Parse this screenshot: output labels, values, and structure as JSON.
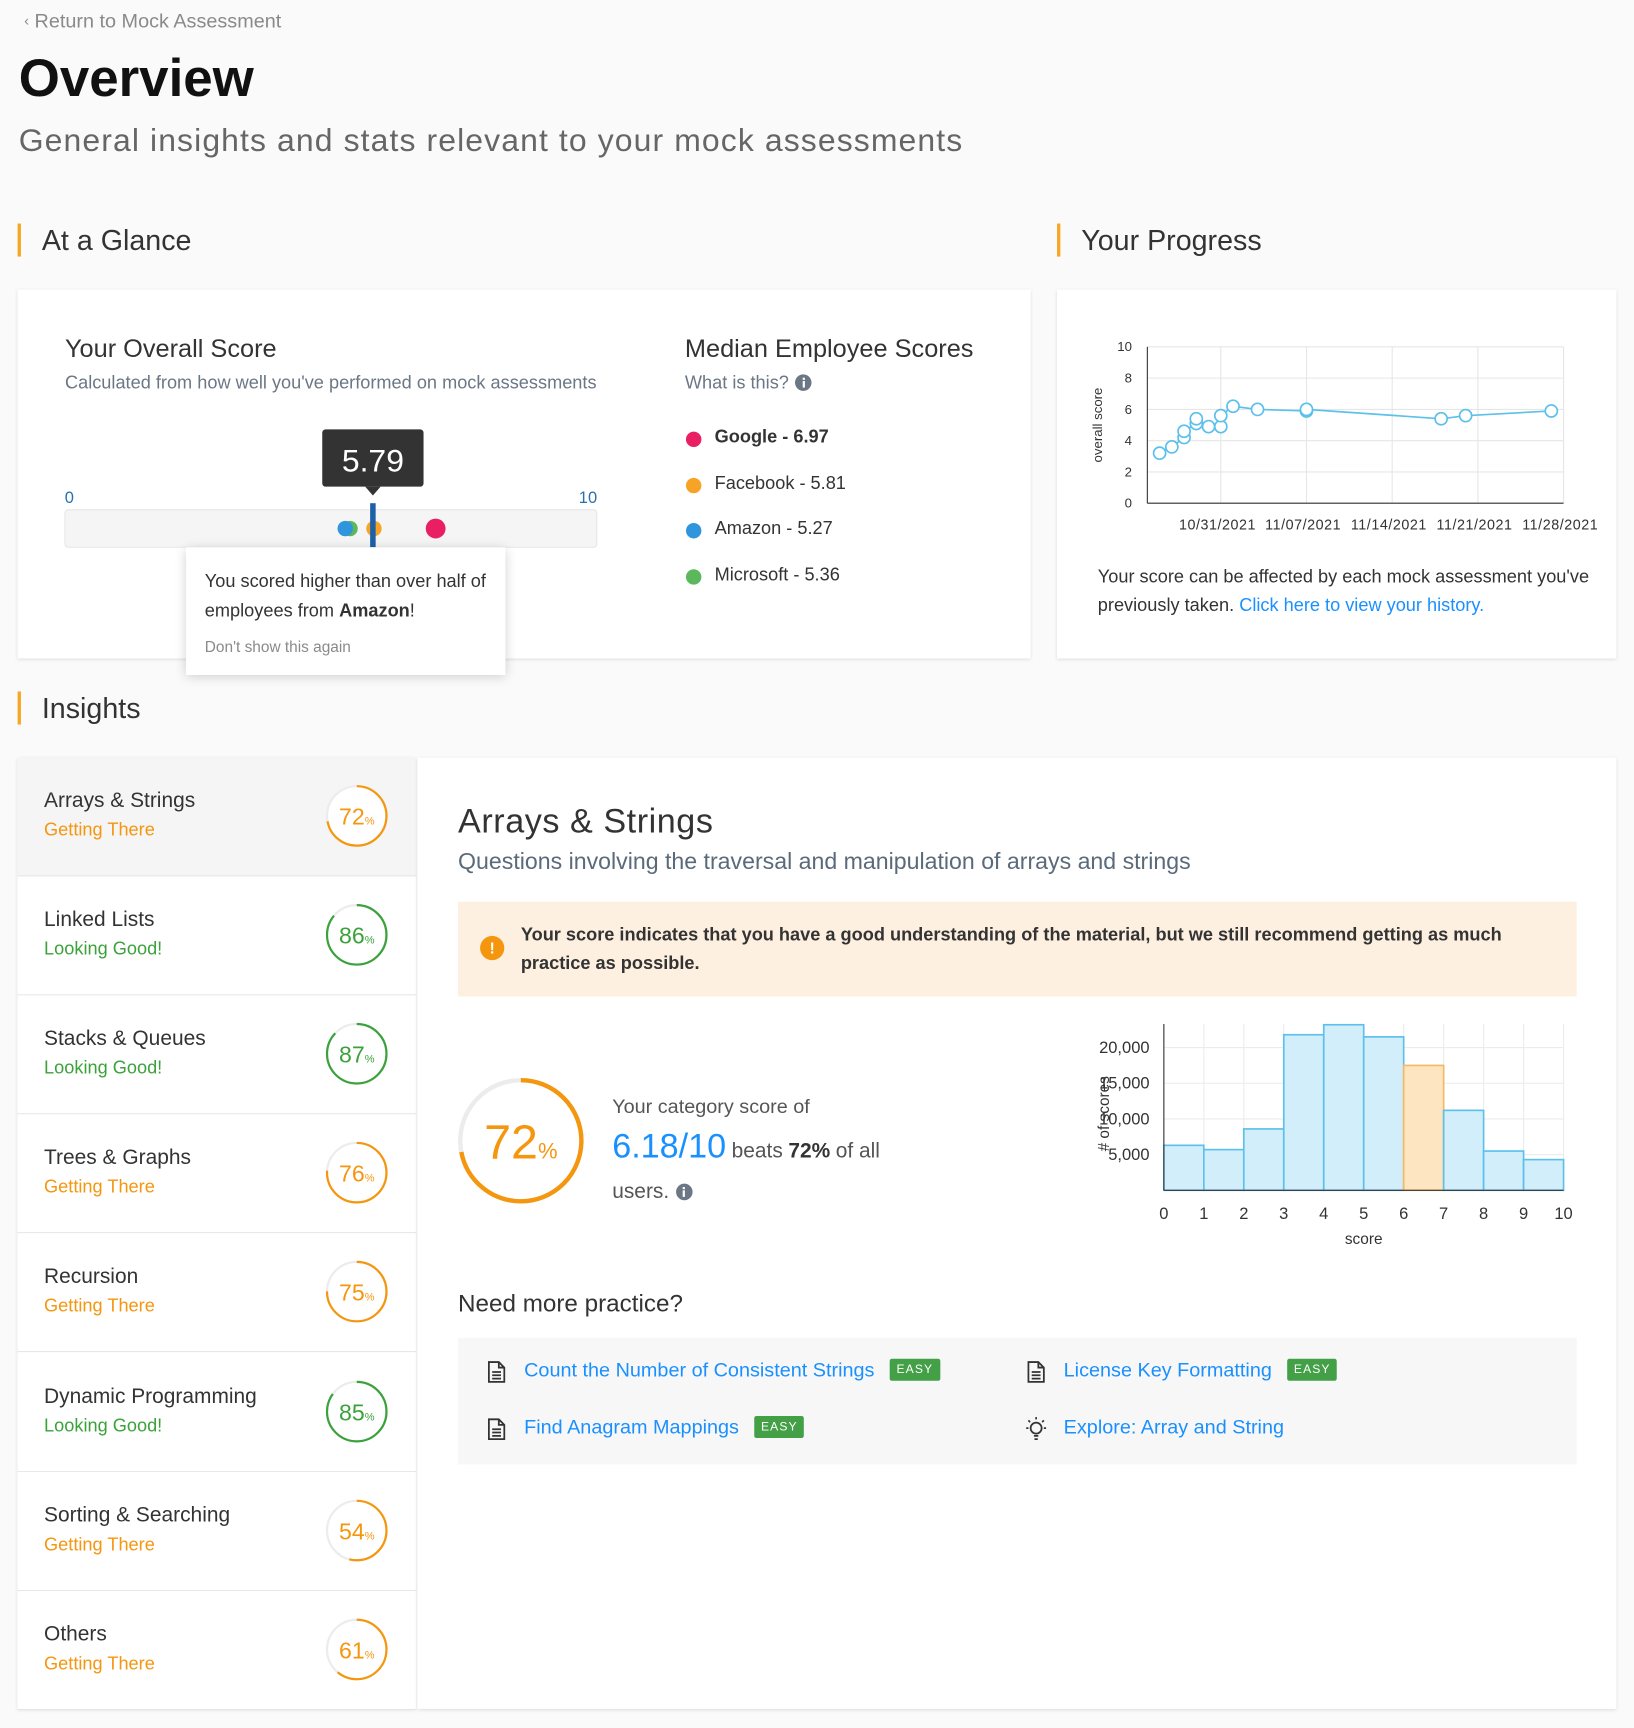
{
  "header": {
    "back_link": "Return to Mock Assessment",
    "title": "Overview",
    "subtitle": "General insights and stats relevant to your mock assessments"
  },
  "glance": {
    "heading": "At a Glance",
    "overall": {
      "title": "Your Overall Score",
      "subtitle": "Calculated from how well you've performed on mock assessments",
      "score": 5.79,
      "min": 0,
      "max": 10,
      "score_color": "#1d5fa8",
      "popover": {
        "before": "You scored higher than over half of employees from",
        "company": "Amazon",
        "after": "!",
        "dismiss": "Don't show this again"
      }
    },
    "median": {
      "title": "Median Employee Scores",
      "help": "What is this?",
      "companies": [
        {
          "label": "Google - 6.97",
          "value": 6.97,
          "color": "#e91e63",
          "bold": true
        },
        {
          "label": "Facebook - 5.81",
          "value": 5.81,
          "color": "#f7a325",
          "bold": false
        },
        {
          "label": "Amazon - 5.27",
          "value": 5.27,
          "color": "#2f95dc",
          "bold": false
        },
        {
          "label": "Microsoft - 5.36",
          "value": 5.36,
          "color": "#5cb85c",
          "bold": false
        }
      ]
    }
  },
  "progress": {
    "heading": "Your Progress",
    "note": "Your score can be affected by each mock assessment you've previously taken.",
    "link": "Click here to view your history."
  },
  "chart_data": [
    {
      "type": "line",
      "y_label": "overall score",
      "color": "#5bc0eb",
      "grid": true,
      "xlim": [
        "10/25/2021",
        "11/28/2021"
      ],
      "xticks": [
        "10/31/2021",
        "11/07/2021",
        "11/14/2021",
        "11/21/2021",
        "11/28/2021"
      ],
      "ylim": [
        0,
        10
      ],
      "yticks": [
        0,
        2,
        4,
        6,
        8,
        10
      ],
      "x": [
        "10/26/2021",
        "10/27/2021",
        "10/28/2021",
        "10/28/2021",
        "10/29/2021",
        "10/29/2021",
        "10/30/2021",
        "10/31/2021",
        "10/31/2021",
        "11/01/2021",
        "11/03/2021",
        "11/07/2021",
        "11/07/2021",
        "11/18/2021",
        "11/20/2021",
        "11/27/2021"
      ],
      "values": [
        3.2,
        3.6,
        4.2,
        4.6,
        5.1,
        5.4,
        4.9,
        4.9,
        5.6,
        6.2,
        6.0,
        5.9,
        6.0,
        5.4,
        5.6,
        5.9
      ]
    },
    {
      "type": "histogram",
      "x_label": "score",
      "y_label": "# of scores",
      "grid": true,
      "bins": [
        0,
        1,
        2,
        3,
        4,
        5,
        6,
        7,
        8,
        9,
        10
      ],
      "values": [
        6300,
        5700,
        8600,
        21800,
        23200,
        21500,
        17500,
        11200,
        5500,
        4300
      ],
      "colors": [
        "#d2eefb",
        "#d2eefb",
        "#d2eefb",
        "#d2eefb",
        "#d2eefb",
        "#d2eefb",
        "#fde5c1",
        "#d2eefb",
        "#d2eefb",
        "#d2eefb"
      ],
      "edge_colors": [
        "#5bc0eb",
        "#5bc0eb",
        "#5bc0eb",
        "#5bc0eb",
        "#5bc0eb",
        "#5bc0eb",
        "#f5b95f",
        "#5bc0eb",
        "#5bc0eb",
        "#5bc0eb"
      ],
      "xlim": [
        0,
        10
      ],
      "xticks": [
        0,
        1,
        2,
        3,
        4,
        5,
        6,
        7,
        8,
        9,
        10
      ],
      "ylim": [
        0,
        23300
      ],
      "yticks": [
        {
          "value": 5000,
          "label": "5,000"
        },
        {
          "value": 10000,
          "label": "10,000"
        },
        {
          "value": 15000,
          "label": "15,000"
        },
        {
          "value": 20000,
          "label": "20,000"
        }
      ]
    }
  ],
  "insights": {
    "heading": "Insights",
    "unit": "%",
    "categories": [
      {
        "name": "Arrays & Strings",
        "status": "Getting There",
        "score": 72,
        "color": "#f5960f"
      },
      {
        "name": "Linked Lists",
        "status": "Looking Good!",
        "score": 86,
        "color": "#3ba23b"
      },
      {
        "name": "Stacks & Queues",
        "status": "Looking Good!",
        "score": 87,
        "color": "#3ba23b"
      },
      {
        "name": "Trees & Graphs",
        "status": "Getting There",
        "score": 76,
        "color": "#f5960f"
      },
      {
        "name": "Recursion",
        "status": "Getting There",
        "score": 75,
        "color": "#f5960f"
      },
      {
        "name": "Dynamic Programming",
        "status": "Looking Good!",
        "score": 85,
        "color": "#3ba23b"
      },
      {
        "name": "Sorting & Searching",
        "status": "Getting There",
        "score": 54,
        "color": "#f5960f"
      },
      {
        "name": "Others",
        "status": "Getting There",
        "score": 61,
        "color": "#f5960f"
      }
    ]
  },
  "detail": {
    "title": "Arrays & Strings",
    "description": "Questions involving the traversal and manipulation of arrays and strings",
    "alert": "Your score indicates that you have a good understanding of the material, but we still recommend getting as much practice as possible.",
    "score": 72,
    "color": "#f5960f",
    "lead": "Your category score of",
    "fraction": "6.18/10",
    "beats": "beats",
    "beats_pct": "72%",
    "tail": "of all users.",
    "practice_heading": "Need more practice?",
    "practice": [
      {
        "title": "Count the Number of Consistent Strings",
        "tag": "EASY",
        "icon": "doc"
      },
      {
        "title": "License Key Formatting",
        "tag": "EASY",
        "icon": "doc"
      },
      {
        "title": "Find Anagram Mappings",
        "tag": "EASY",
        "icon": "doc"
      },
      {
        "title": "Explore: Array and String",
        "icon": "bulb"
      }
    ]
  }
}
